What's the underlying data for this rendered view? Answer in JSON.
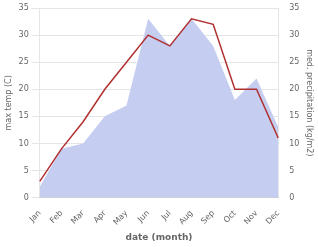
{
  "chart_data": {
    "type": "line",
    "categories": [
      "Jan",
      "Feb",
      "Mar",
      "Apr",
      "May",
      "Jun",
      "Jul",
      "Aug",
      "Sep",
      "Oct",
      "Nov",
      "Dec"
    ],
    "xlabel": "date (month)",
    "ylabel": "max temp (C)",
    "y2label": "med. precipitation (kg/m2)",
    "ylim": [
      0,
      35
    ],
    "yticks": [
      0,
      5,
      10,
      15,
      20,
      25,
      30,
      35
    ],
    "y2lim": [
      0,
      35
    ],
    "y2ticks": [
      0,
      5,
      10,
      15,
      20,
      25,
      30,
      35
    ],
    "grid": true,
    "series": [
      {
        "type": "area",
        "axis": "y2",
        "color": "#c5cdf0",
        "values": [
          2,
          9,
          10,
          15,
          17,
          33,
          28,
          33,
          28,
          18,
          22,
          13
        ]
      },
      {
        "type": "line",
        "axis": "y",
        "color": "#b03030",
        "values": [
          3,
          9,
          14,
          20,
          25,
          30,
          28,
          33,
          32,
          20,
          20,
          11
        ]
      }
    ]
  }
}
